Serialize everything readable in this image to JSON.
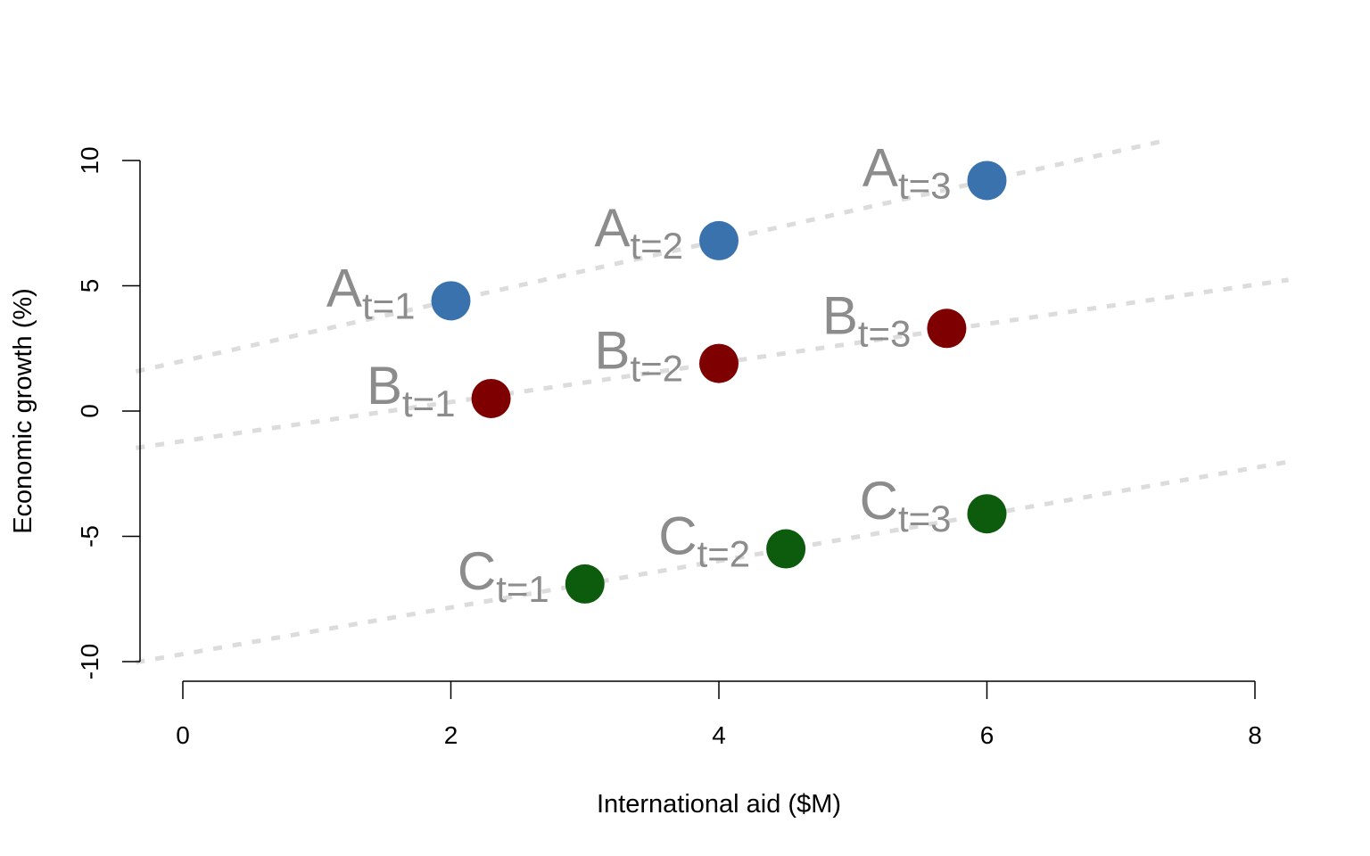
{
  "chart_data": {
    "type": "scatter",
    "xlabel": "International aid ($M)",
    "ylabel": "Economic growth (%)",
    "xlim": [
      0,
      8
    ],
    "ylim": [
      -10,
      10
    ],
    "xticks": [
      "0",
      "2",
      "4",
      "6",
      "8"
    ],
    "yticks": [
      "-10",
      "-5",
      "0",
      "5",
      "10"
    ],
    "grid": false,
    "points": [
      {
        "group": "A",
        "sub": "t=1",
        "x": 2.0,
        "y": 4.4,
        "color": "#3a72ad"
      },
      {
        "group": "A",
        "sub": "t=2",
        "x": 4.0,
        "y": 6.8,
        "color": "#3a72ad"
      },
      {
        "group": "A",
        "sub": "t=3",
        "x": 6.0,
        "y": 9.2,
        "color": "#3a72ad"
      },
      {
        "group": "B",
        "sub": "t=1",
        "x": 2.3,
        "y": 0.5,
        "color": "#7e0000"
      },
      {
        "group": "B",
        "sub": "t=2",
        "x": 4.0,
        "y": 1.9,
        "color": "#7e0000"
      },
      {
        "group": "B",
        "sub": "t=3",
        "x": 5.7,
        "y": 3.3,
        "color": "#7e0000"
      },
      {
        "group": "C",
        "sub": "t=1",
        "x": 3.0,
        "y": -6.9,
        "color": "#0d5b0d"
      },
      {
        "group": "C",
        "sub": "t=2",
        "x": 4.5,
        "y": -5.5,
        "color": "#0d5b0d"
      },
      {
        "group": "C",
        "sub": "t=3",
        "x": 6.0,
        "y": -4.1,
        "color": "#0d5b0d"
      }
    ],
    "trend_lines": [
      {
        "group": "A",
        "intercept": 2.0,
        "slope": 1.2,
        "x_range": [
          -0.35,
          7.35
        ]
      },
      {
        "group": "B",
        "intercept": -1.2,
        "slope": 0.78,
        "x_range": [
          -0.35,
          8.25
        ]
      },
      {
        "group": "C",
        "intercept": -9.7,
        "slope": 0.93,
        "x_range": [
          -0.35,
          8.25
        ]
      }
    ]
  }
}
